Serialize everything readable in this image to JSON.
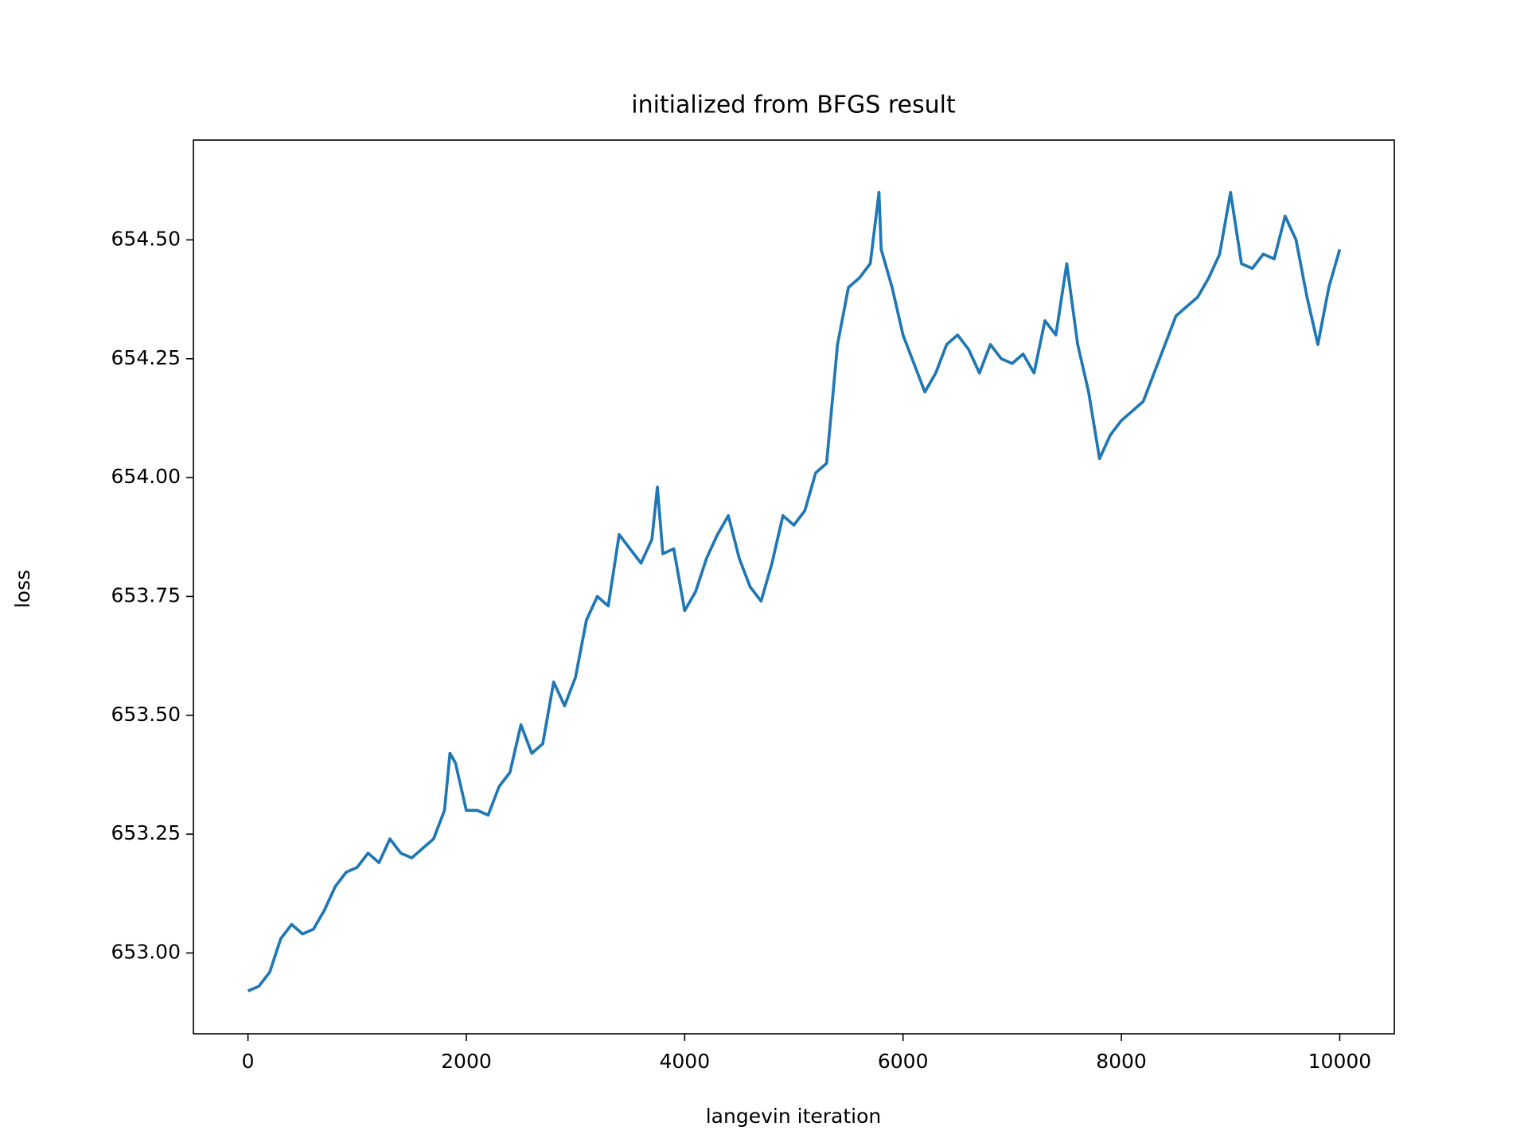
{
  "chart_data": {
    "type": "line",
    "title": "initialized from BFGS result",
    "xlabel": "langevin iteration",
    "ylabel": "loss",
    "x": [
      0,
      100,
      200,
      300,
      400,
      500,
      600,
      700,
      800,
      900,
      1000,
      1100,
      1200,
      1300,
      1400,
      1500,
      1600,
      1700,
      1800,
      1850,
      1900,
      2000,
      2100,
      2200,
      2300,
      2400,
      2500,
      2600,
      2700,
      2800,
      2900,
      3000,
      3100,
      3200,
      3300,
      3400,
      3500,
      3600,
      3700,
      3750,
      3800,
      3900,
      4000,
      4100,
      4200,
      4300,
      4400,
      4500,
      4600,
      4700,
      4800,
      4900,
      5000,
      5100,
      5200,
      5300,
      5400,
      5500,
      5600,
      5700,
      5780,
      5800,
      5900,
      6000,
      6100,
      6200,
      6300,
      6400,
      6500,
      6600,
      6700,
      6800,
      6900,
      7000,
      7100,
      7200,
      7300,
      7400,
      7500,
      7600,
      7700,
      7800,
      7900,
      8000,
      8100,
      8200,
      8300,
      8400,
      8500,
      8600,
      8700,
      8800,
      8900,
      9000,
      9100,
      9200,
      9300,
      9400,
      9500,
      9600,
      9700,
      9800,
      9900,
      10000
    ],
    "series": [
      {
        "color": "#1f77b4",
        "values": [
          652.92,
          652.93,
          652.96,
          653.03,
          653.06,
          653.04,
          653.05,
          653.09,
          653.14,
          653.17,
          653.18,
          653.21,
          653.19,
          653.24,
          653.21,
          653.2,
          653.22,
          653.24,
          653.3,
          653.42,
          653.4,
          653.3,
          653.3,
          653.29,
          653.35,
          653.38,
          653.48,
          653.42,
          653.44,
          653.57,
          653.52,
          653.58,
          653.7,
          653.75,
          653.73,
          653.88,
          653.85,
          653.82,
          653.87,
          653.98,
          653.84,
          653.85,
          653.72,
          653.76,
          653.83,
          653.88,
          653.92,
          653.83,
          653.77,
          653.74,
          653.82,
          653.92,
          653.9,
          653.93,
          654.01,
          654.03,
          654.28,
          654.4,
          654.42,
          654.45,
          654.6,
          654.48,
          654.4,
          654.3,
          654.24,
          654.18,
          654.22,
          654.28,
          654.3,
          654.27,
          654.22,
          654.28,
          654.25,
          654.24,
          654.26,
          654.22,
          654.33,
          654.3,
          654.45,
          654.28,
          654.18,
          654.04,
          654.09,
          654.12,
          654.14,
          654.16,
          654.22,
          654.28,
          654.34,
          654.36,
          654.38,
          654.42,
          654.47,
          654.6,
          654.45,
          654.44,
          654.47,
          654.46,
          654.55,
          654.5,
          654.38,
          654.28,
          654.4,
          654.48
        ]
      }
    ],
    "xlim": [
      -500,
      10500
    ],
    "xticks": [
      0,
      2000,
      4000,
      6000,
      8000,
      10000
    ],
    "ylim": [
      652.83,
      654.71
    ],
    "yticks": [
      {
        "value": 653,
        "label": "653.00"
      },
      {
        "value": 653.25,
        "label": "653.25"
      },
      {
        "value": 653.5,
        "label": "653.50"
      },
      {
        "value": 653.75,
        "label": "653.75"
      },
      {
        "value": 654,
        "label": "654.00"
      },
      {
        "value": 654.25,
        "label": "654.25"
      },
      {
        "value": 654.5,
        "label": "654.50"
      }
    ],
    "grid": false
  }
}
